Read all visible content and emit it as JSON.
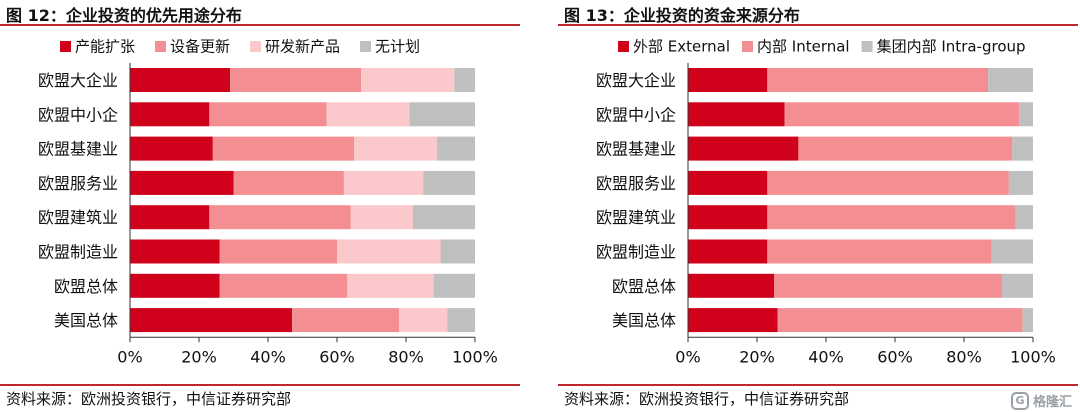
{
  "watermark": {
    "logo_glyph": "G",
    "text": "格隆汇"
  },
  "colors": {
    "dark_red": "#d0021b",
    "mid_pink": "#f38f92",
    "light_pink": "#fbc8cb",
    "gray": "#bfbfbf",
    "accent_rule": "#c0262d"
  },
  "panels": [
    {
      "title": "图 12：企业投资的优先用途分布",
      "source": "资料来源：欧洲投资银行，中信证券研究部"
    },
    {
      "title": "图 13：企业投资的资金来源分布",
      "source": "资料来源：欧洲投资银行，中信证券研究部"
    }
  ],
  "chart_data": [
    {
      "type": "bar",
      "orientation": "horizontal",
      "stacked": true,
      "categories": [
        "欧盟大企业",
        "欧盟中小企",
        "欧盟基建业",
        "欧盟服务业",
        "欧盟建筑业",
        "欧盟制造业",
        "欧盟总体",
        "美国总体"
      ],
      "series": [
        {
          "name": "产能扩张",
          "color": "#d0021b",
          "values": [
            29,
            23,
            24,
            30,
            23,
            26,
            26,
            47
          ]
        },
        {
          "name": "设备更新",
          "color": "#f38f92",
          "values": [
            38,
            34,
            41,
            32,
            41,
            34,
            37,
            31
          ]
        },
        {
          "name": "研发新产品",
          "color": "#fbc8cb",
          "values": [
            27,
            24,
            24,
            23,
            18,
            30,
            25,
            14
          ]
        },
        {
          "name": "无计划",
          "color": "#bfbfbf",
          "values": [
            6,
            19,
            11,
            15,
            18,
            10,
            12,
            8
          ]
        }
      ],
      "xlim": [
        0,
        100
      ],
      "xticks": [
        "0%",
        "20%",
        "40%",
        "60%",
        "80%",
        "100%"
      ],
      "legend_position": "top",
      "grid": false
    },
    {
      "type": "bar",
      "orientation": "horizontal",
      "stacked": true,
      "categories": [
        "欧盟大企业",
        "欧盟中小企",
        "欧盟基建业",
        "欧盟服务业",
        "欧盟建筑业",
        "欧盟制造业",
        "欧盟总体",
        "美国总体"
      ],
      "series": [
        {
          "name": "外部 External",
          "color": "#d0021b",
          "values": [
            23,
            28,
            32,
            23,
            23,
            23,
            25,
            26
          ]
        },
        {
          "name": "内部 Internal",
          "color": "#f38f92",
          "values": [
            64,
            68,
            62,
            70,
            72,
            65,
            66,
            71
          ]
        },
        {
          "name": "集团内部 Intra-group",
          "color": "#bfbfbf",
          "values": [
            13,
            4,
            6,
            7,
            5,
            12,
            9,
            3
          ]
        }
      ],
      "xlim": [
        0,
        100
      ],
      "xticks": [
        "0%",
        "20%",
        "40%",
        "60%",
        "80%",
        "100%"
      ],
      "legend_position": "top",
      "grid": false
    }
  ]
}
